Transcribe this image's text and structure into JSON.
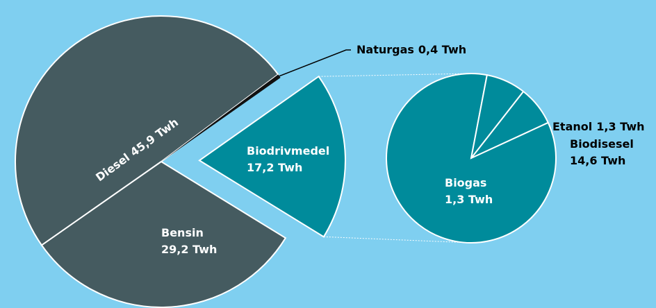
{
  "chart_data": [
    {
      "type": "pie",
      "categories": [
        "Diesel",
        "Naturgas",
        "Biodrivmedel",
        "Bensin"
      ],
      "values": [
        45.9,
        0.4,
        17.2,
        29.2
      ],
      "value_labels": [
        "45,9 Twh",
        "0,4 Twh",
        "17,2 Twh",
        "29,2 Twh"
      ],
      "colors": [
        "#455b60",
        "#111111",
        "#008b9b",
        "#455b60"
      ]
    },
    {
      "type": "pie",
      "categories": [
        "Etanol",
        "Biodisesel",
        "Biogas"
      ],
      "values": [
        1.3,
        14.6,
        1.3
      ],
      "value_labels": [
        "1,3 Twh",
        "14,6 Twh",
        "1,3 Twh"
      ],
      "colors": [
        "#008b9b",
        "#008b9b",
        "#008b9b"
      ]
    }
  ]
}
